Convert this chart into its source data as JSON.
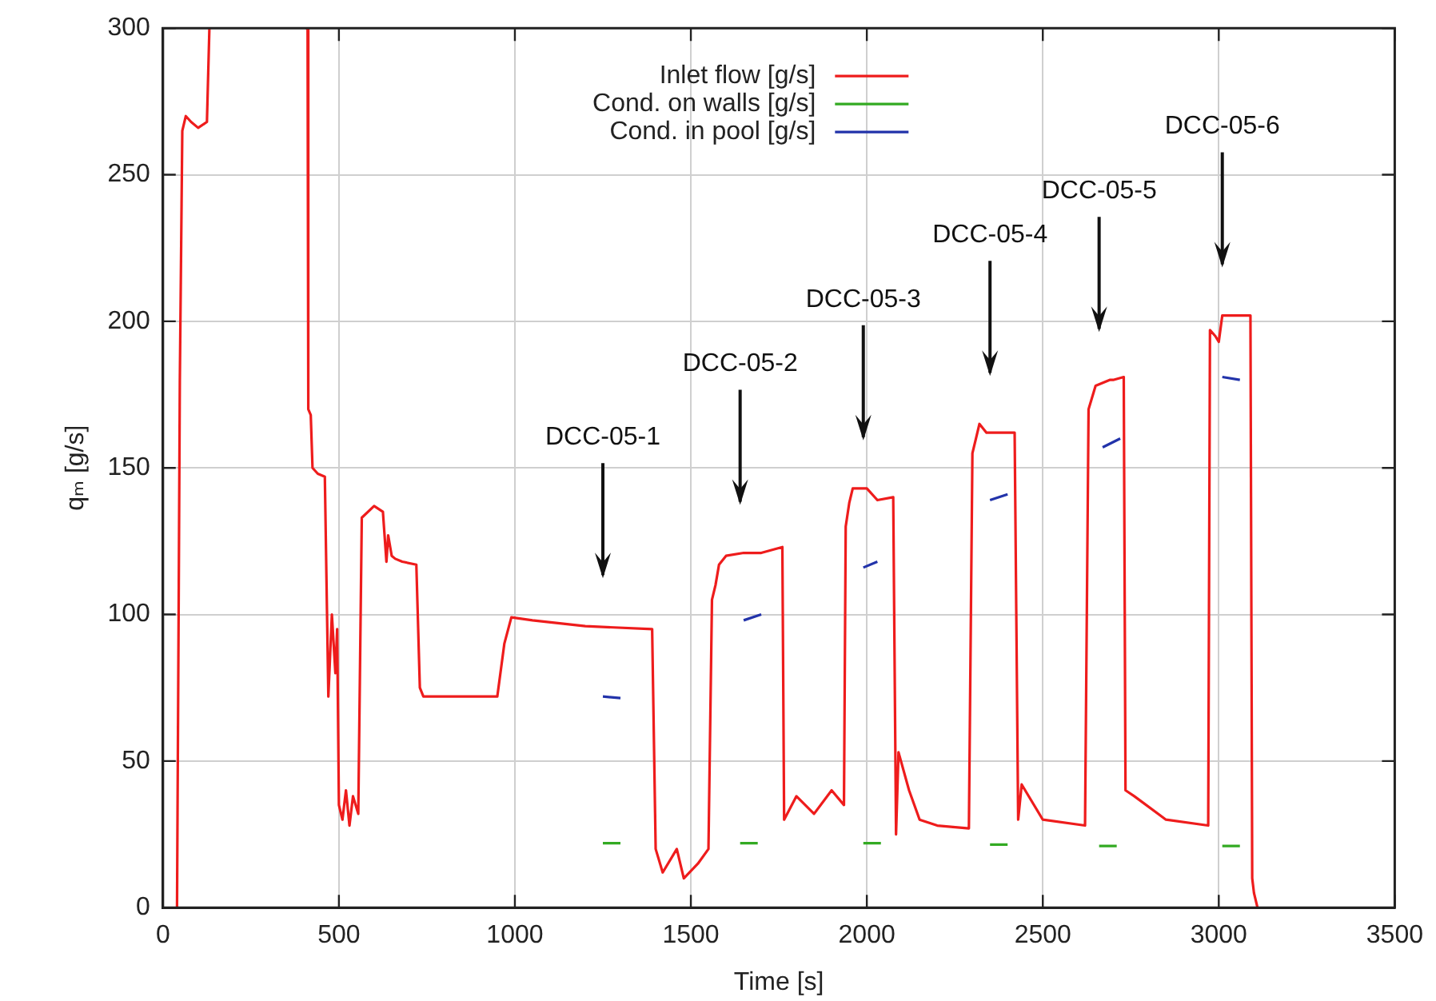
{
  "chart_data": {
    "type": "line",
    "xlabel": "Time [s]",
    "ylabel": "qₘ [g/s]",
    "xlim": [
      0,
      3500
    ],
    "ylim": [
      0,
      300
    ],
    "xticks": [
      0,
      500,
      1000,
      1500,
      2000,
      2500,
      3000,
      3500
    ],
    "yticks": [
      0,
      50,
      100,
      150,
      200,
      250,
      300
    ],
    "grid": true,
    "legend": "top",
    "marker": "none",
    "line_style": "solid",
    "series": [
      {
        "name": "Inlet flow [g/s]",
        "color": "#ee1c1c",
        "x": [
          40,
          45,
          48,
          55,
          65,
          80,
          100,
          125,
          132,
          140,
          405,
          411,
          413,
          420,
          425,
          440,
          460,
          470,
          480,
          490,
          495,
          500,
          510,
          520,
          530,
          540,
          555,
          565,
          600,
          625,
          635,
          640,
          650,
          660,
          680,
          720,
          730,
          740,
          800,
          900,
          950,
          970,
          990,
          1050,
          1200,
          1390,
          1400,
          1420,
          1460,
          1480,
          1520,
          1550,
          1560,
          1570,
          1580,
          1600,
          1650,
          1700,
          1760,
          1765,
          1800,
          1850,
          1900,
          1935,
          1940,
          1950,
          1960,
          2000,
          2030,
          2075,
          2083,
          2090,
          2120,
          2150,
          2200,
          2290,
          2300,
          2310,
          2320,
          2340,
          2355,
          2420,
          2430,
          2440,
          2500,
          2620,
          2630,
          2650,
          2690,
          2700,
          2730,
          2735,
          2760,
          2850,
          2970,
          2975,
          2990,
          3000,
          3010,
          3025,
          3090,
          3095,
          3100,
          3110
        ],
        "values": [
          0,
          110,
          180,
          265,
          270,
          268,
          266,
          268,
          300,
          null,
          300,
          300,
          170,
          168,
          150,
          148,
          147,
          72,
          100,
          80,
          95,
          35,
          30,
          40,
          28,
          38,
          32,
          133,
          137,
          135,
          118,
          127,
          120,
          119,
          118,
          117,
          75,
          72,
          72,
          72,
          72,
          90,
          99,
          98,
          96,
          95,
          20,
          12,
          20,
          10,
          15,
          20,
          105,
          110,
          117,
          120,
          121,
          121,
          123,
          30,
          38,
          32,
          40,
          35,
          130,
          138,
          143,
          143,
          139,
          140,
          25,
          53,
          40,
          30,
          28,
          27,
          155,
          160,
          165,
          162,
          162,
          162,
          30,
          42,
          30,
          28,
          170,
          178,
          180,
          180,
          181,
          40,
          38,
          30,
          28,
          197,
          195,
          193,
          202,
          202,
          202,
          10,
          5,
          0
        ]
      },
      {
        "name": "Cond. on walls [g/s]",
        "color": "#33aa22",
        "x": [
          1250,
          1300,
          1310,
          1640,
          1690,
          1700,
          1990,
          2040,
          2050,
          2350,
          2400,
          2410,
          2660,
          2710,
          2720,
          3010,
          3060
        ],
        "values": [
          22,
          22,
          null,
          22,
          22,
          null,
          22,
          22,
          null,
          21.5,
          21.5,
          null,
          21,
          21,
          null,
          21,
          21
        ]
      },
      {
        "name": "Cond. in pool [g/s]",
        "color": "#2233aa",
        "x": [
          1250,
          1300,
          1310,
          1650,
          1700,
          1710,
          1990,
          2030,
          2040,
          2350,
          2400,
          2410,
          2670,
          2720,
          2730,
          3010,
          3060
        ],
        "values": [
          72,
          71.5,
          null,
          98,
          100,
          null,
          116,
          118,
          null,
          139,
          141,
          null,
          157,
          160,
          null,
          181,
          180
        ]
      }
    ],
    "annotations": [
      "DCC-05-1",
      "DCC-05-2",
      "DCC-05-3",
      "DCC-05-4",
      "DCC-05-5",
      "DCC-05-6"
    ]
  }
}
